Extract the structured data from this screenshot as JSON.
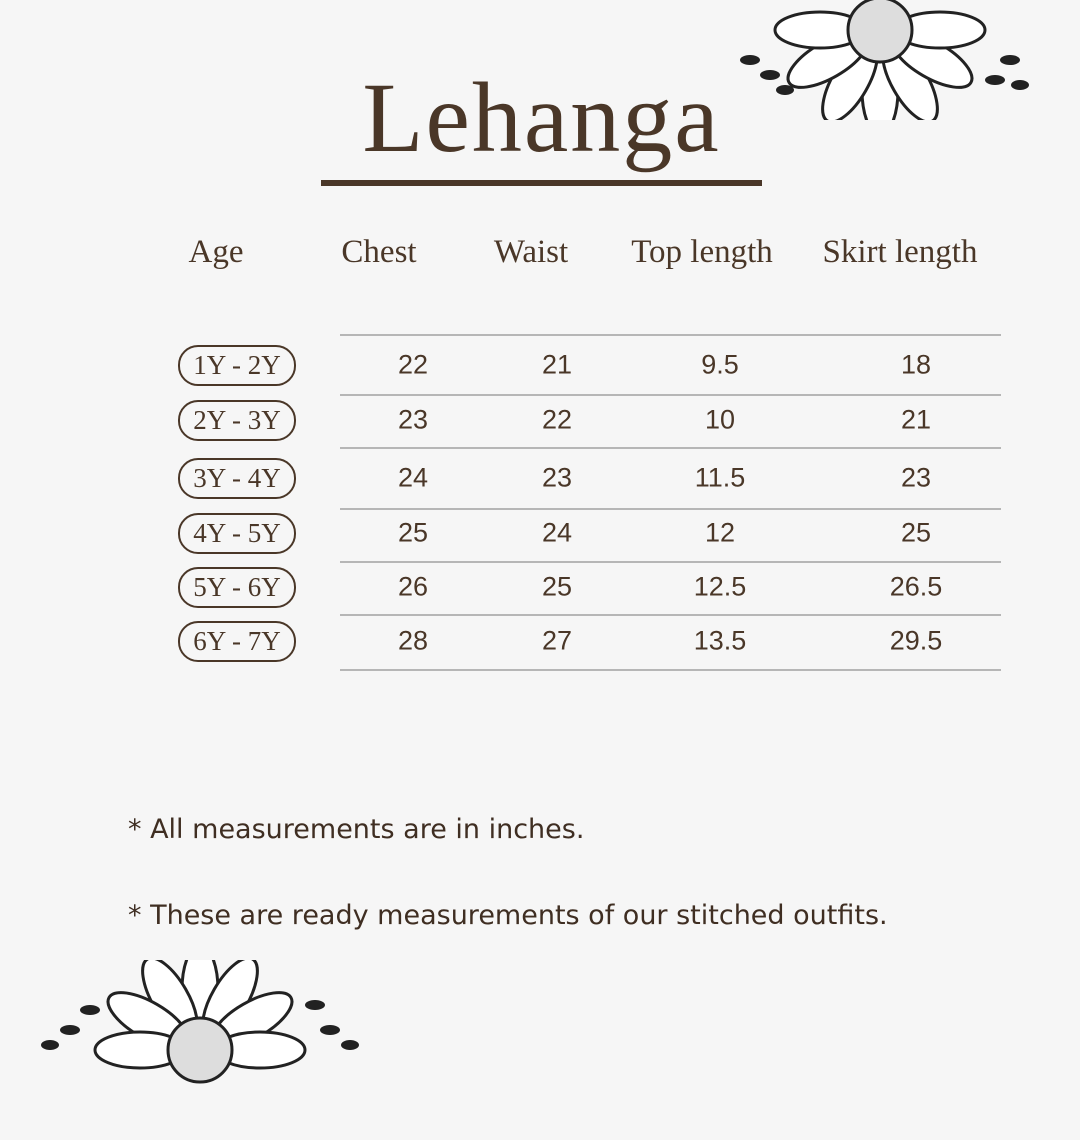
{
  "title": "Lehanga",
  "table": {
    "headers": [
      "Age",
      "Chest",
      "Waist",
      "Top length",
      "Skirt length"
    ],
    "rows": [
      {
        "age": "1Y - 2Y",
        "chest": "22",
        "waist": "21",
        "top_length": "9.5",
        "skirt_length": "18"
      },
      {
        "age": "2Y - 3Y",
        "chest": "23",
        "waist": "22",
        "top_length": "10",
        "skirt_length": "21"
      },
      {
        "age": "3Y - 4Y",
        "chest": "24",
        "waist": "23",
        "top_length": "11.5",
        "skirt_length": "23"
      },
      {
        "age": "4Y - 5Y",
        "chest": "25",
        "waist": "24",
        "top_length": "12",
        "skirt_length": "25"
      },
      {
        "age": "5Y - 6Y",
        "chest": "26",
        "waist": "25",
        "top_length": "12.5",
        "skirt_length": "26.5"
      },
      {
        "age": "6Y - 7Y",
        "chest": "28",
        "waist": "27",
        "top_length": "13.5",
        "skirt_length": "29.5"
      }
    ]
  },
  "notes": [
    "* All measurements are in inches.",
    "* These are ready measurements of our stitched outfits."
  ],
  "colors": {
    "text": "#4a3728",
    "background": "#f6f6f6",
    "divider": "#b6b6b6"
  },
  "decorations": [
    "sunflower-icon",
    "sunflower-icon"
  ]
}
